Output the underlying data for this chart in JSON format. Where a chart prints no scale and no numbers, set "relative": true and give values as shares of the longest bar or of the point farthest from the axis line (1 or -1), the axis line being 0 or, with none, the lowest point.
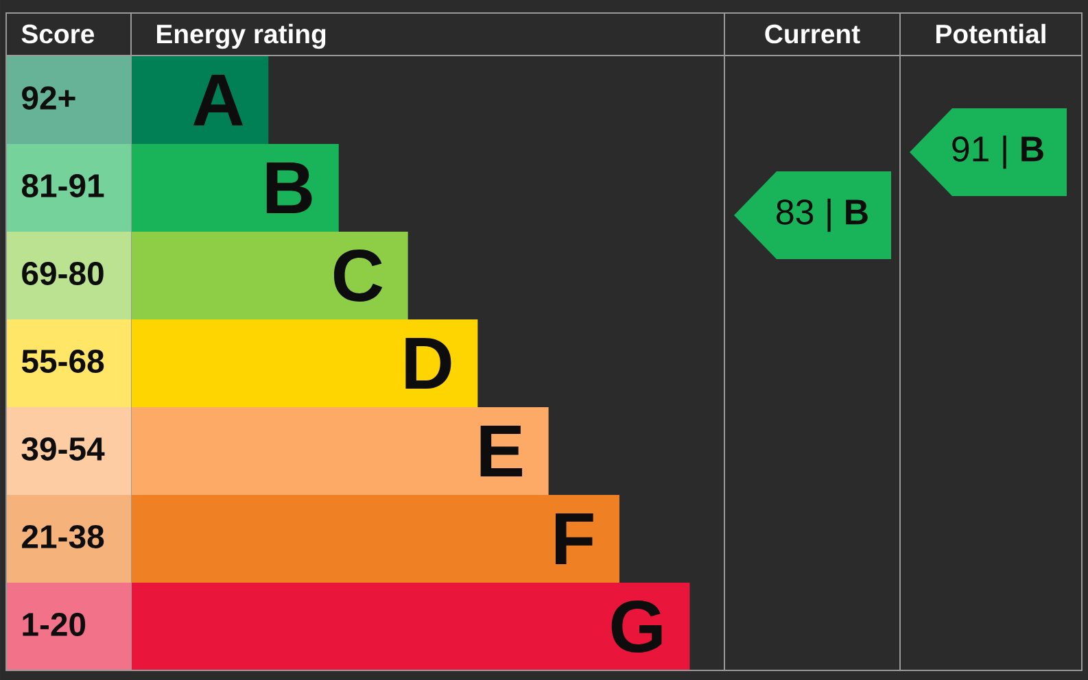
{
  "chart_data": [
    {
      "type": "bar",
      "orientation": "horizontal",
      "relative": true,
      "xlabel": "Energy rating",
      "ylabel": "Score",
      "categories": [
        "92+",
        "81-91",
        "69-80",
        "55-68",
        "39-54",
        "21-38",
        "1-20"
      ],
      "values": [
        0.245,
        0.371,
        0.495,
        0.62,
        0.747,
        0.874,
        1
      ],
      "colors": [
        "#008054",
        "#19b459",
        "#8dce46",
        "#ffd500",
        "#fcaa65",
        "#ef8023",
        "#e9153b"
      ],
      "annotations": [
        {
          "text": "A",
          "x": 0.245,
          "y": "92+"
        },
        {
          "text": "B",
          "x": 0.371,
          "y": "81-91"
        },
        {
          "text": "C",
          "x": 0.495,
          "y": "69-80"
        },
        {
          "text": "D",
          "x": 0.62,
          "y": "55-68"
        },
        {
          "text": "E",
          "x": 0.747,
          "y": "39-54"
        },
        {
          "text": "F",
          "x": 0.874,
          "y": "21-38"
        },
        {
          "text": "G",
          "x": 1,
          "y": "1-20"
        }
      ]
    },
    {
      "type": "other",
      "categories": [
        "Current",
        "Potential"
      ],
      "values": [
        83,
        91
      ],
      "colors": [
        "#19b459",
        "#19b459"
      ],
      "value_labels": [
        "83 | **B**",
        "91 | **B**"
      ]
    }
  ]
}
